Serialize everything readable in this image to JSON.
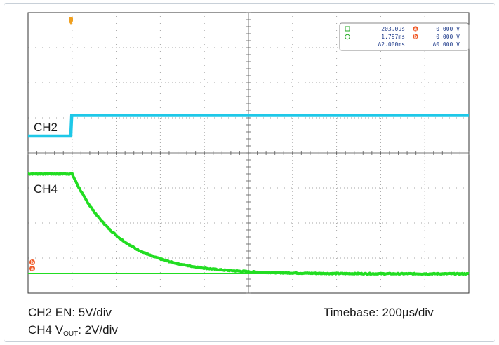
{
  "chart_data": {
    "type": "line",
    "instrument": "oscilloscope",
    "grid": true,
    "divisions": {
      "x": 10,
      "y": 8
    },
    "series": [
      {
        "name": "CH2",
        "label": "CH2",
        "color": "#1ec8e8",
        "description": "EN step low to high at cursor a",
        "x_div": [
          0,
          0.97,
          0.99,
          10
        ],
        "y_div": [
          4.48,
          4.48,
          5.07,
          5.07
        ]
      },
      {
        "name": "CH4",
        "label": "CH4",
        "color": "#22dd22",
        "description": "VOUT exponential discharge after EN transition",
        "baseline_div": 0.55,
        "start_div": 3.4,
        "t0_div": 1.0,
        "tau_div": 1.05,
        "end_div": 10
      }
    ],
    "reference_line": {
      "y_div": 0.55,
      "color": "#22dd22"
    },
    "cursors": {
      "a": {
        "time": "−203.0µs",
        "value": "0.000 V"
      },
      "b": {
        "time": "1.797ms",
        "value": "0.000 V"
      },
      "delta": {
        "time": "Δ2.000ms",
        "value": "Δ0.000 V"
      }
    }
  },
  "footer": {
    "left_line1": "CH2 EN: 5V/div",
    "left_line2_prefix": "CH4 V",
    "left_line2_sub": "OUT",
    "left_line2_suffix": ": 2V/div",
    "right": "Timebase: 200µs/div"
  },
  "colors": {
    "grid": "#5a5a5a",
    "cursor_marker": "#f05a28",
    "trigger_marker": "#f0a020",
    "readout_border": "#888888"
  }
}
